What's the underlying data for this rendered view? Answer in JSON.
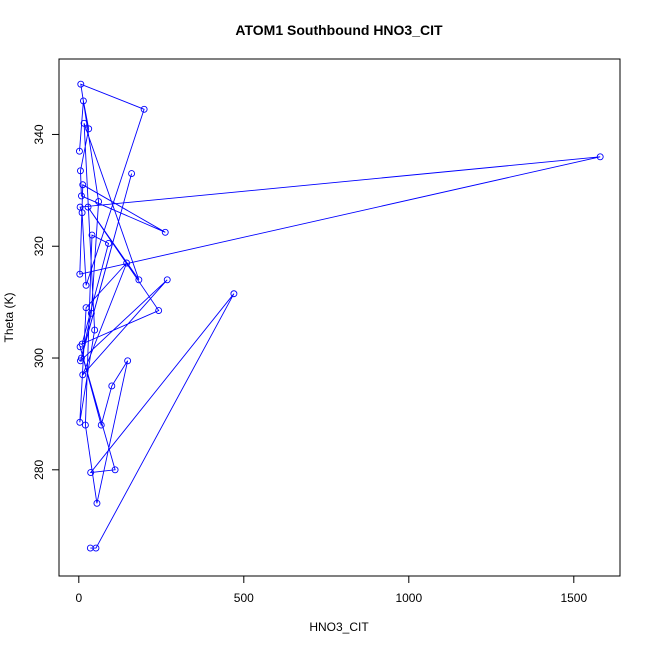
{
  "chart_data": {
    "type": "scatter",
    "title": "ATOM1 Southbound HNO3_CIT",
    "xlabel": "HNO3_CIT",
    "ylabel": "Theta (K)",
    "xlim": [
      -60,
      1640
    ],
    "ylim": [
      261,
      353.5
    ],
    "xticks": [
      0,
      500,
      1000,
      1500
    ],
    "yticks": [
      280,
      300,
      320,
      340
    ],
    "grid": false,
    "legend": "none",
    "markers": "open-circle",
    "connected": true,
    "colors": {
      "series": "#0000ff",
      "axis": "#000000",
      "background": "#ffffff"
    },
    "series": [
      {
        "x": [
          2,
          14,
          30,
          5,
          8,
          262,
          12,
          3,
          1580,
          4,
          10,
          22,
          198,
          6,
          60,
          38,
          8,
          160,
          5,
          268,
          12,
          145,
          22,
          3,
          48,
          16,
          182,
          28,
          242,
          10,
          90,
          40,
          20,
          55,
          148,
          100,
          68,
          4,
          110,
          36,
          470,
          52,
          35
        ],
        "y": [
          337,
          346,
          341,
          333.5,
          329,
          322.5,
          331,
          315,
          336,
          327,
          326,
          313,
          344.5,
          349,
          328,
          308,
          300,
          333,
          299.5,
          314,
          297,
          317,
          309,
          288.5,
          305,
          342,
          314,
          327,
          308.5,
          302.5,
          320.5,
          322,
          288,
          274,
          299.5,
          295,
          288,
          302,
          280,
          279.5,
          311.5,
          266,
          266
        ]
      }
    ]
  }
}
